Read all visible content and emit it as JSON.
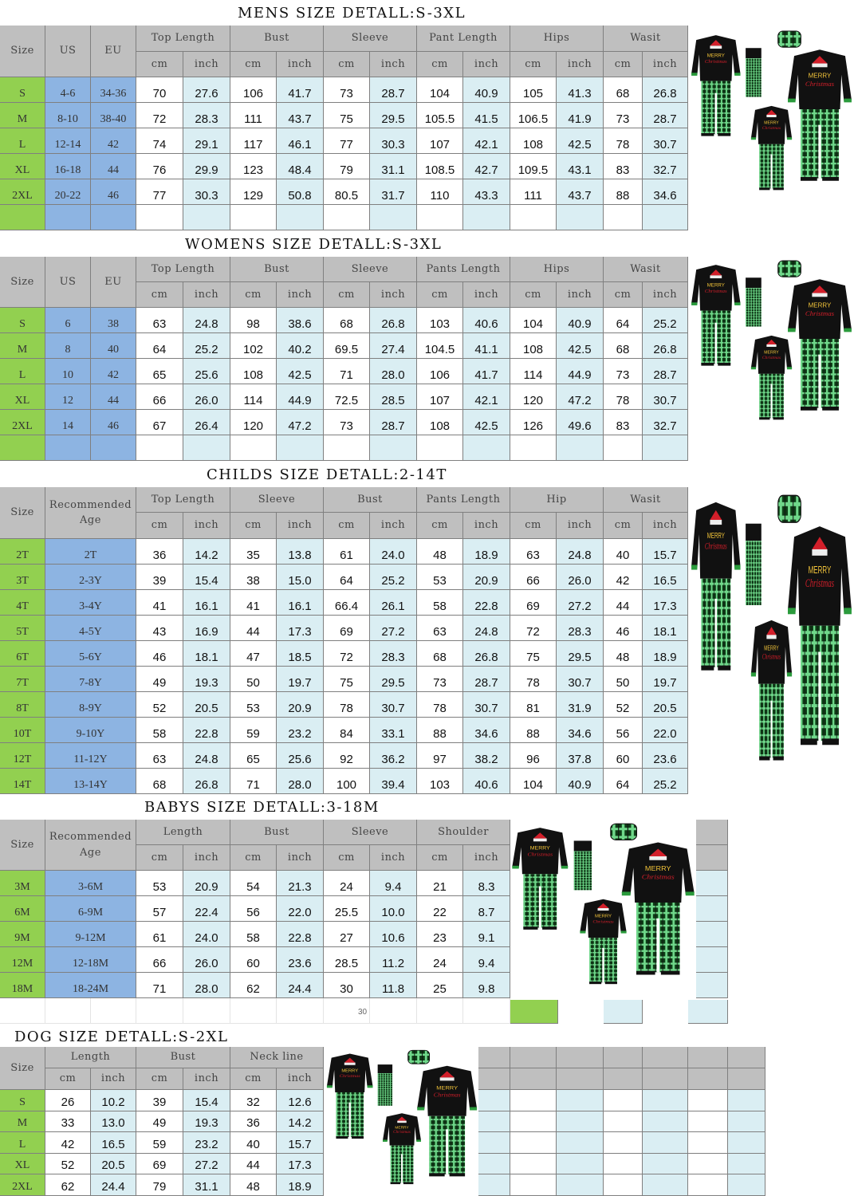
{
  "colors": {
    "size_col": "#92d050",
    "us_eu_col": "#8db4e2",
    "inch_col": "#daeef3",
    "header": "#bfbfbf"
  },
  "product_image": "family-christmas-pajamas-photo",
  "sections": [
    {
      "id": "mens",
      "title": "MENS SIZE DETALL:S-3XL",
      "lead": [
        "Size",
        "US",
        "EU"
      ],
      "groups": [
        "Top Length",
        "Bust",
        "Sleeve",
        "Pant Length",
        "Hips",
        "Wasit"
      ],
      "units": [
        "cm",
        "inch"
      ],
      "rows": [
        [
          "S",
          "4-6",
          "34-36",
          "70",
          "27.6",
          "106",
          "41.7",
          "73",
          "28.7",
          "104",
          "40.9",
          "105",
          "41.3",
          "68",
          "26.8"
        ],
        [
          "M",
          "8-10",
          "38-40",
          "72",
          "28.3",
          "111",
          "43.7",
          "75",
          "29.5",
          "105.5",
          "41.5",
          "106.5",
          "41.9",
          "73",
          "28.7"
        ],
        [
          "L",
          "12-14",
          "42",
          "74",
          "29.1",
          "117",
          "46.1",
          "77",
          "30.3",
          "107",
          "42.1",
          "108",
          "42.5",
          "78",
          "30.7"
        ],
        [
          "XL",
          "16-18",
          "44",
          "76",
          "29.9",
          "123",
          "48.4",
          "79",
          "31.1",
          "108.5",
          "42.7",
          "109.5",
          "43.1",
          "83",
          "32.7"
        ],
        [
          "2XL",
          "20-22",
          "46",
          "77",
          "30.3",
          "129",
          "50.8",
          "80.5",
          "31.7",
          "110",
          "43.3",
          "111",
          "43.7",
          "88",
          "34.6"
        ]
      ]
    },
    {
      "id": "womens",
      "title": "WOMENS SIZE DETALL:S-3XL",
      "lead": [
        "Size",
        "US",
        "EU"
      ],
      "groups": [
        "Top Length",
        "Bust",
        "Sleeve",
        "Pants Length",
        "Hips",
        "Wasit"
      ],
      "units": [
        "cm",
        "inch"
      ],
      "rows": [
        [
          "S",
          "6",
          "38",
          "63",
          "24.8",
          "98",
          "38.6",
          "68",
          "26.8",
          "103",
          "40.6",
          "104",
          "40.9",
          "64",
          "25.2"
        ],
        [
          "M",
          "8",
          "40",
          "64",
          "25.2",
          "102",
          "40.2",
          "69.5",
          "27.4",
          "104.5",
          "41.1",
          "108",
          "42.5",
          "68",
          "26.8"
        ],
        [
          "L",
          "10",
          "42",
          "65",
          "25.6",
          "108",
          "42.5",
          "71",
          "28.0",
          "106",
          "41.7",
          "114",
          "44.9",
          "73",
          "28.7"
        ],
        [
          "XL",
          "12",
          "44",
          "66",
          "26.0",
          "114",
          "44.9",
          "72.5",
          "28.5",
          "107",
          "42.1",
          "120",
          "47.2",
          "78",
          "30.7"
        ],
        [
          "2XL",
          "14",
          "46",
          "67",
          "26.4",
          "120",
          "47.2",
          "73",
          "28.7",
          "108",
          "42.5",
          "126",
          "49.6",
          "83",
          "32.7"
        ]
      ]
    },
    {
      "id": "childs",
      "title": "CHILDS SIZE DETALL:2-14T",
      "lead": [
        "Size",
        "Recommended Age"
      ],
      "groups": [
        "Top Length",
        "Sleeve",
        "Bust",
        "Pants Length",
        "Hip",
        "Wasit"
      ],
      "units": [
        "cm",
        "inch"
      ],
      "rows": [
        [
          "2T",
          "2T",
          "36",
          "14.2",
          "35",
          "13.8",
          "61",
          "24.0",
          "48",
          "18.9",
          "63",
          "24.8",
          "40",
          "15.7"
        ],
        [
          "3T",
          "2-3Y",
          "39",
          "15.4",
          "38",
          "15.0",
          "64",
          "25.2",
          "53",
          "20.9",
          "66",
          "26.0",
          "42",
          "16.5"
        ],
        [
          "4T",
          "3-4Y",
          "41",
          "16.1",
          "41",
          "16.1",
          "66.4",
          "26.1",
          "58",
          "22.8",
          "69",
          "27.2",
          "44",
          "17.3"
        ],
        [
          "5T",
          "4-5Y",
          "43",
          "16.9",
          "44",
          "17.3",
          "69",
          "27.2",
          "63",
          "24.8",
          "72",
          "28.3",
          "46",
          "18.1"
        ],
        [
          "6T",
          "5-6Y",
          "46",
          "18.1",
          "47",
          "18.5",
          "72",
          "28.3",
          "68",
          "26.8",
          "75",
          "29.5",
          "48",
          "18.9"
        ],
        [
          "7T",
          "7-8Y",
          "49",
          "19.3",
          "50",
          "19.7",
          "75",
          "29.5",
          "73",
          "28.7",
          "78",
          "30.7",
          "50",
          "19.7"
        ],
        [
          "8T",
          "8-9Y",
          "52",
          "20.5",
          "53",
          "20.9",
          "78",
          "30.7",
          "78",
          "30.7",
          "81",
          "31.9",
          "52",
          "20.5"
        ],
        [
          "10T",
          "9-10Y",
          "58",
          "22.8",
          "59",
          "23.2",
          "84",
          "33.1",
          "88",
          "34.6",
          "88",
          "34.6",
          "56",
          "22.0"
        ],
        [
          "12T",
          "11-12Y",
          "63",
          "24.8",
          "65",
          "25.6",
          "92",
          "36.2",
          "97",
          "38.2",
          "96",
          "37.8",
          "60",
          "23.6"
        ],
        [
          "14T",
          "13-14Y",
          "68",
          "26.8",
          "71",
          "28.0",
          "100",
          "39.4",
          "103",
          "40.6",
          "104",
          "40.9",
          "64",
          "25.2"
        ]
      ]
    },
    {
      "id": "babys",
      "title": "BABYS SIZE DETALL:3-18M",
      "lead": [
        "Size",
        "Recommended Age"
      ],
      "groups": [
        "Length",
        "Bust",
        "Sleeve",
        "Shoulder"
      ],
      "units": [
        "cm",
        "inch"
      ],
      "rows": [
        [
          "3M",
          "3-6M",
          "53",
          "20.9",
          "54",
          "21.3",
          "24",
          "9.4",
          "21",
          "8.3"
        ],
        [
          "6M",
          "6-9M",
          "57",
          "22.4",
          "56",
          "22.0",
          "25.5",
          "10.0",
          "22",
          "8.7"
        ],
        [
          "9M",
          "9-12M",
          "61",
          "24.0",
          "58",
          "22.8",
          "27",
          "10.6",
          "23",
          "9.1"
        ],
        [
          "12M",
          "12-18M",
          "66",
          "26.0",
          "60",
          "23.6",
          "28.5",
          "11.2",
          "24",
          "9.4"
        ],
        [
          "18M",
          "18-24M",
          "71",
          "28.0",
          "62",
          "24.4",
          "30",
          "11.8",
          "25",
          "9.8"
        ]
      ],
      "stray_value": "30"
    },
    {
      "id": "dog",
      "title": "DOG SIZE DETALL:S-2XL",
      "lead": [
        "Size"
      ],
      "groups": [
        "Length",
        "Bust",
        "Neck line"
      ],
      "units": [
        "cm",
        "inch"
      ],
      "rows": [
        [
          "S",
          "26",
          "10.2",
          "39",
          "15.4",
          "32",
          "12.6"
        ],
        [
          "M",
          "33",
          "13.0",
          "49",
          "19.3",
          "36",
          "14.2"
        ],
        [
          "L",
          "42",
          "16.5",
          "59",
          "23.2",
          "40",
          "15.7"
        ],
        [
          "XL",
          "52",
          "20.5",
          "69",
          "27.2",
          "44",
          "17.3"
        ],
        [
          "2XL",
          "62",
          "24.4",
          "79",
          "31.1",
          "48",
          "18.9"
        ]
      ]
    }
  ]
}
